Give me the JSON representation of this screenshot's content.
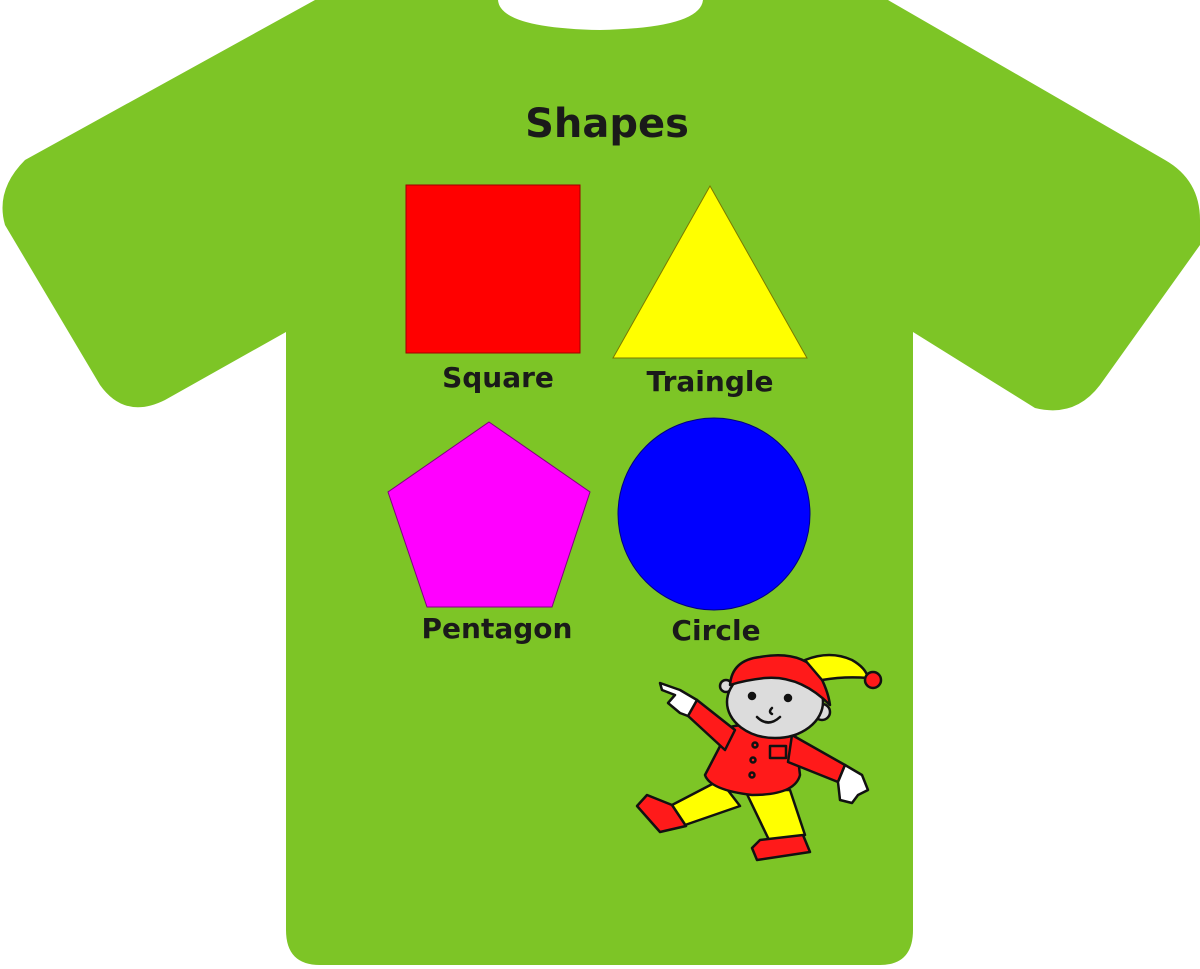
{
  "title": "Shapes",
  "shirt_color": "#7dc526",
  "shapes": [
    {
      "name": "square",
      "label": "Square",
      "color": "#ff0000"
    },
    {
      "name": "triangle",
      "label": "Traingle",
      "color": "#ffff00"
    },
    {
      "name": "pentagon",
      "label": "Pentagon",
      "color": "#ff00ff"
    },
    {
      "name": "circle",
      "label": "Circle",
      "color": "#0000ff"
    }
  ],
  "mascot": {
    "hat_color": "#ff1a1a",
    "hat_tip_color": "#ffff00",
    "shirt_color": "#ff1a1a",
    "pants_color": "#ffff00",
    "shoes_color": "#ff1a1a",
    "face_color": "#dcdcdc"
  }
}
